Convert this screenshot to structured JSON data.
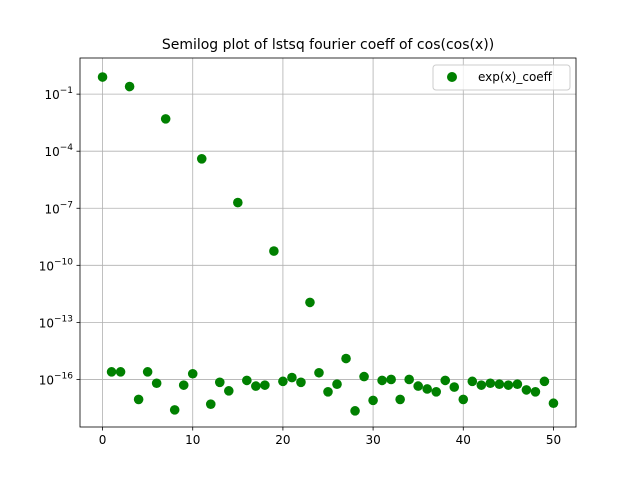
{
  "chart_data": {
    "type": "scatter",
    "title": "Semilog plot of lstsq fourier coeff of cos(cos(x))",
    "xlabel": "",
    "ylabel": "",
    "yscale": "log",
    "xlim": [
      -2.5,
      52.5
    ],
    "ylim_exp": [
      -18.5,
      0.9
    ],
    "xticks": [
      0,
      10,
      20,
      30,
      40,
      50
    ],
    "yticks": [
      {
        "exp": -1,
        "label": "10",
        "sup": "−1"
      },
      {
        "exp": -4,
        "label": "10",
        "sup": "−4"
      },
      {
        "exp": -7,
        "label": "10",
        "sup": "−7"
      },
      {
        "exp": -10,
        "label": "10",
        "sup": "−10"
      },
      {
        "exp": -13,
        "label": "10",
        "sup": "−13"
      },
      {
        "exp": -16,
        "label": "10",
        "sup": "−16"
      }
    ],
    "grid": true,
    "legend_position": "top-right",
    "series": [
      {
        "name": "exp(x)_coeff",
        "color": "#008000",
        "x": [
          0,
          1,
          2,
          3,
          4,
          5,
          6,
          7,
          8,
          9,
          10,
          11,
          12,
          13,
          14,
          15,
          16,
          17,
          18,
          19,
          20,
          21,
          22,
          23,
          24,
          25,
          26,
          27,
          28,
          29,
          30,
          31,
          32,
          33,
          34,
          35,
          36,
          37,
          38,
          39,
          40,
          41,
          42,
          43,
          44,
          45,
          46,
          47,
          48,
          49,
          50
        ],
        "log10_y": [
          -0.1,
          -15.6,
          -15.6,
          -0.6,
          -17.05,
          -15.6,
          -16.2,
          -2.3,
          -17.6,
          -16.3,
          -15.7,
          -4.4,
          -17.3,
          -16.15,
          -16.6,
          -6.7,
          -16.05,
          -16.35,
          -16.3,
          -9.25,
          -16.1,
          -15.9,
          -16.15,
          -11.95,
          -15.65,
          -16.65,
          -16.25,
          -14.9,
          -17.65,
          -15.85,
          -17.1,
          -16.05,
          -16.0,
          -17.05,
          -16.0,
          -16.35,
          -16.5,
          -16.65,
          -16.05,
          -16.4,
          -17.05,
          -16.1,
          -16.3,
          -16.2,
          -16.25,
          -16.3,
          -16.25,
          -16.55,
          -16.65,
          -16.1,
          -17.25
        ]
      }
    ]
  }
}
